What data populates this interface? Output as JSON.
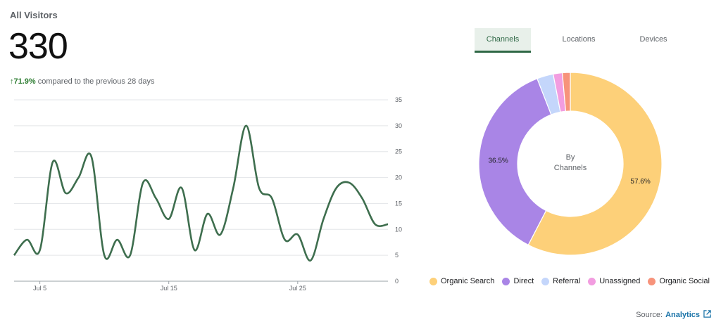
{
  "header": {
    "title": "All Visitors",
    "total": "330",
    "change_arrow": "↑",
    "change_pct": "71.9%",
    "change_text": "compared to the previous 28 days"
  },
  "tabs": [
    {
      "label": "Channels",
      "active": true
    },
    {
      "label": "Locations",
      "active": false
    },
    {
      "label": "Devices",
      "active": false
    }
  ],
  "donut_center": {
    "line1": "By",
    "line2": "Channels"
  },
  "source": {
    "label": "Source:",
    "link": "Analytics",
    "icon": "external-link-icon"
  },
  "colors": {
    "line": "#3e6e4e",
    "accent": "#2f6846"
  },
  "chart_data": [
    {
      "type": "line",
      "title": "",
      "x_tick_labels": [
        "Jul 5",
        "Jul 15",
        "Jul 25"
      ],
      "x_tick_days": [
        5,
        15,
        25
      ],
      "ylim": [
        0,
        35
      ],
      "y_ticks": [
        0,
        5,
        10,
        15,
        20,
        25,
        30,
        35
      ],
      "grid": true,
      "series": [
        {
          "x": [
            3,
            4,
            5,
            6,
            7,
            8,
            9,
            10,
            11,
            12,
            13,
            14,
            15,
            16,
            17,
            18,
            19,
            20,
            21,
            22,
            23,
            24,
            25,
            26,
            27,
            28,
            29,
            30,
            31,
            32
          ],
          "values": [
            5,
            8,
            6,
            23,
            17,
            20,
            24,
            5,
            8,
            5,
            19,
            16,
            12,
            18,
            6,
            13,
            9,
            18,
            30,
            18,
            16,
            8,
            9,
            4,
            12,
            18,
            19,
            16,
            11,
            11
          ]
        }
      ]
    },
    {
      "type": "pie",
      "title": "",
      "slices": [
        {
          "label": "Organic Search",
          "value": 57.6,
          "display": "57.6%",
          "color": "#fdd079"
        },
        {
          "label": "Direct",
          "value": 36.5,
          "display": "36.5%",
          "color": "#a985e6"
        },
        {
          "label": "Referral",
          "value": 2.9,
          "display": "",
          "color": "#c4d6fb"
        },
        {
          "label": "Unassigned",
          "value": 1.6,
          "display": "",
          "color": "#f29de0"
        },
        {
          "label": "Organic Social",
          "value": 1.4,
          "display": "",
          "color": "#f7937b"
        }
      ]
    }
  ]
}
